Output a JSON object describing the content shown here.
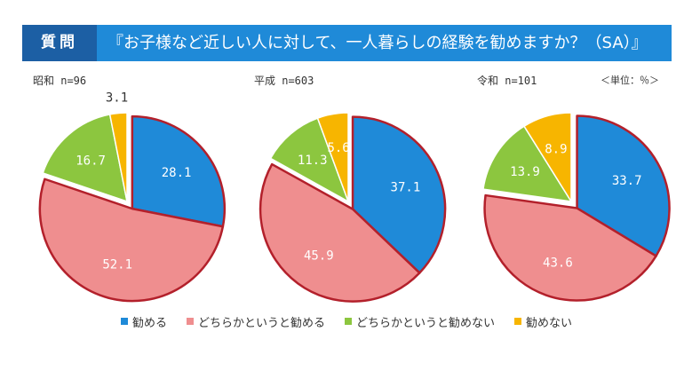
{
  "header": {
    "question_label": "質問",
    "question_text": "『お子様など近しい人に対して、一人暮らしの経験を勧めますか？（SA）』"
  },
  "unit_label": "＜単位：％＞",
  "colors": {
    "banner": "#1f8ad8",
    "banner_label": "#1c5fa4",
    "highlight_border": "#b3202b"
  },
  "chart_data": {
    "type": "pie",
    "title": "『お子様など近しい人に対して、一人暮らしの経験を勧めますか？（SA）』",
    "categories": [
      "勧める",
      "どちらかというと勧める",
      "どちらかというと勧めない",
      "勧めない"
    ],
    "colors": [
      "#1f8ad8",
      "#ef8e8f",
      "#8cc63f",
      "#f7b500"
    ],
    "highlighted_categories": [
      "勧める",
      "どちらかというと勧める"
    ],
    "unit": "％",
    "legend_position": "bottom",
    "series": [
      {
        "name": "昭和",
        "label": "昭和 n=96",
        "n": 96,
        "values": [
          28.1,
          52.1,
          16.7,
          3.1
        ]
      },
      {
        "name": "平成",
        "label": "平成 n=603",
        "n": 603,
        "values": [
          37.1,
          45.9,
          11.3,
          5.6
        ]
      },
      {
        "name": "令和",
        "label": "令和 n=101",
        "n": 101,
        "values": [
          33.7,
          43.6,
          13.9,
          8.9
        ]
      }
    ]
  }
}
